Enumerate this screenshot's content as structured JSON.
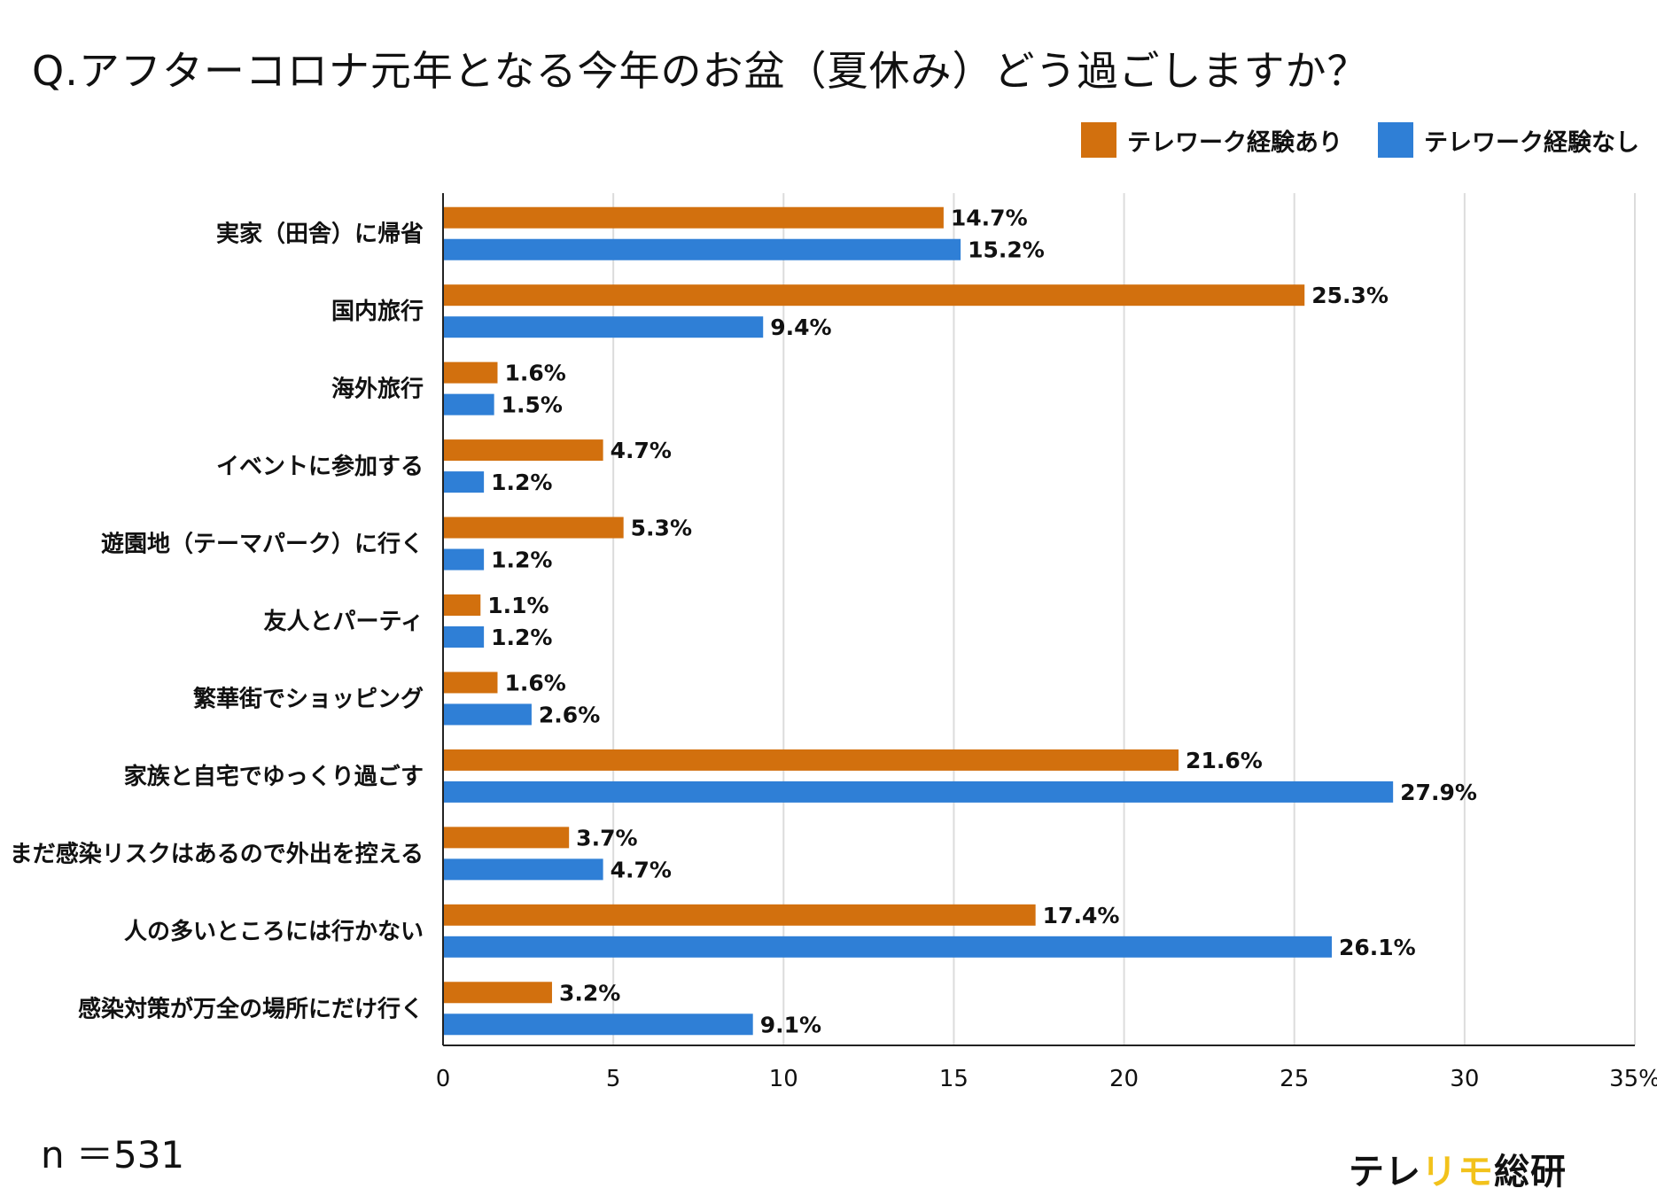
{
  "chart_data": {
    "type": "bar",
    "orientation": "horizontal",
    "title": "Q.アフターコロナ元年となる今年のお盆（夏休み）どう過ごしますか？",
    "categories": [
      "実家（田舎）に帰省",
      "国内旅行",
      "海外旅行",
      "イベントに参加する",
      "遊園地（テーマパーク）に行く",
      "友人とパーティ",
      "繁華街でショッピング",
      "家族と自宅でゆっくり過ごす",
      "まだ感染リスクはあるので外出を控える",
      "人の多いところには行かない",
      "感染対策が万全の場所にだけ行く"
    ],
    "series": [
      {
        "name": "テレワーク経験あり",
        "color": "#d2700e",
        "values": [
          14.7,
          25.3,
          1.6,
          4.7,
          5.3,
          1.1,
          1.6,
          21.6,
          3.7,
          17.4,
          3.2
        ],
        "labels": [
          "14.7%",
          "25.3%",
          "1.6%",
          "4.7%",
          "5.3%",
          "1.1%",
          "1.6%",
          "21.6%",
          "3.7%",
          "17.4%",
          "3.2%"
        ]
      },
      {
        "name": "テレワーク経験なし",
        "color": "#2f7fd6",
        "values": [
          15.2,
          9.4,
          1.5,
          1.2,
          1.2,
          1.2,
          2.6,
          27.9,
          4.7,
          26.1,
          9.1
        ],
        "labels": [
          "15.2%",
          "9.4%",
          "1.5%",
          "1.2%",
          "1.2%",
          "1.2%",
          "2.6%",
          "27.9%",
          "4.7%",
          "26.1%",
          "9.1%"
        ]
      }
    ],
    "xlim": [
      0,
      35
    ],
    "xticks": [
      "0",
      "5",
      "10",
      "15",
      "20",
      "25",
      "30",
      "35%"
    ],
    "grid": true,
    "legend_position": "top-right"
  },
  "footer": {
    "sample_size": "n ＝531",
    "logo_part1": "テレ",
    "logo_part2": "リモ",
    "logo_part3": "総研"
  }
}
